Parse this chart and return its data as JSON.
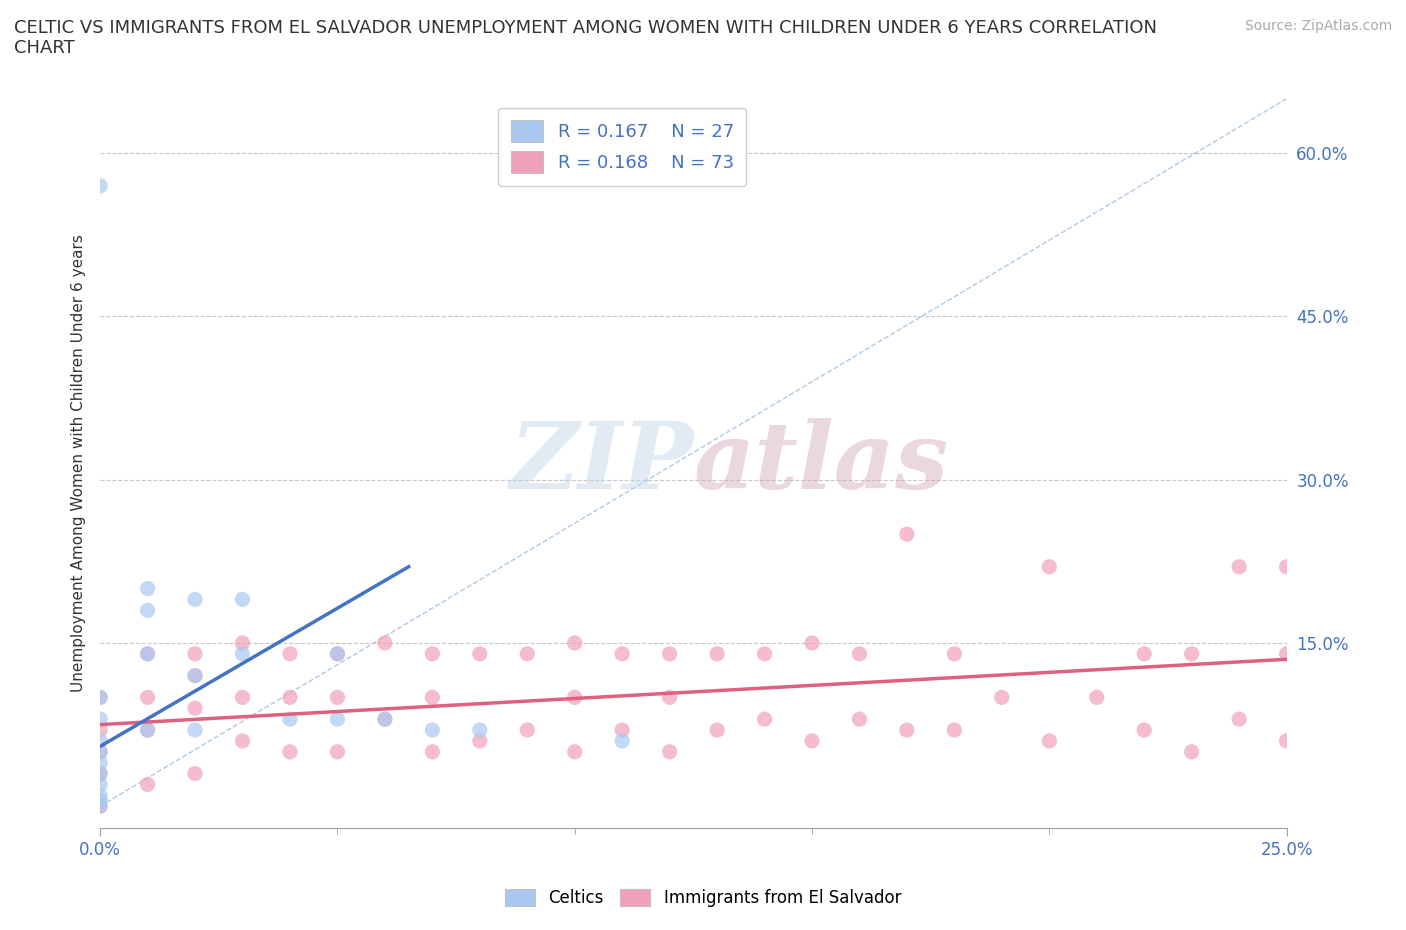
{
  "title": "CELTIC VS IMMIGRANTS FROM EL SALVADOR UNEMPLOYMENT AMONG WOMEN WITH CHILDREN UNDER 6 YEARS CORRELATION\nCHART",
  "source_text": "Source: ZipAtlas.com",
  "ylabel": "Unemployment Among Women with Children Under 6 years",
  "xlim": [
    0.0,
    0.25
  ],
  "ylim": [
    -0.02,
    0.65
  ],
  "ytick_values": [
    0.15,
    0.3,
    0.45,
    0.6
  ],
  "xtick_major": [
    0.0,
    0.25
  ],
  "xtick_minor": [
    0.05,
    0.1,
    0.15,
    0.2
  ],
  "color_celtics": "#a8c8f0",
  "color_salvador": "#f0a0b8",
  "color_celtics_line": "#4472c4",
  "color_salvador_line": "#e06080",
  "color_diagonal": "#b0c8e8",
  "watermark_zip": "ZIP",
  "watermark_atlas": "atlas",
  "background_color": "#ffffff",
  "celtics_x": [
    0.0,
    0.0,
    0.0,
    0.0,
    0.0,
    0.0,
    0.0,
    0.0,
    0.0,
    0.0,
    0.0,
    0.01,
    0.01,
    0.01,
    0.01,
    0.02,
    0.02,
    0.02,
    0.03,
    0.03,
    0.04,
    0.05,
    0.05,
    0.06,
    0.07,
    0.08,
    0.11
  ],
  "celtics_y": [
    0.57,
    0.1,
    0.08,
    0.06,
    0.05,
    0.04,
    0.03,
    0.02,
    0.01,
    0.005,
    0.0,
    0.2,
    0.18,
    0.14,
    0.07,
    0.19,
    0.12,
    0.07,
    0.19,
    0.14,
    0.08,
    0.14,
    0.08,
    0.08,
    0.07,
    0.07,
    0.06
  ],
  "celtics_line_x": [
    0.0,
    0.065
  ],
  "celtics_line_y": [
    0.055,
    0.22
  ],
  "salvador_x": [
    0.0,
    0.0,
    0.0,
    0.0,
    0.0,
    0.01,
    0.01,
    0.01,
    0.01,
    0.02,
    0.02,
    0.02,
    0.02,
    0.03,
    0.03,
    0.03,
    0.04,
    0.04,
    0.04,
    0.05,
    0.05,
    0.05,
    0.06,
    0.06,
    0.07,
    0.07,
    0.07,
    0.08,
    0.08,
    0.09,
    0.09,
    0.1,
    0.1,
    0.1,
    0.11,
    0.11,
    0.12,
    0.12,
    0.12,
    0.13,
    0.13,
    0.14,
    0.14,
    0.15,
    0.15,
    0.16,
    0.16,
    0.17,
    0.17,
    0.18,
    0.18,
    0.19,
    0.2,
    0.2,
    0.21,
    0.22,
    0.22,
    0.23,
    0.23,
    0.24,
    0.24,
    0.25,
    0.25,
    0.25
  ],
  "salvador_y": [
    0.1,
    0.07,
    0.05,
    0.03,
    0.0,
    0.14,
    0.1,
    0.07,
    0.02,
    0.14,
    0.12,
    0.09,
    0.03,
    0.15,
    0.1,
    0.06,
    0.14,
    0.1,
    0.05,
    0.14,
    0.1,
    0.05,
    0.15,
    0.08,
    0.14,
    0.1,
    0.05,
    0.14,
    0.06,
    0.14,
    0.07,
    0.15,
    0.1,
    0.05,
    0.14,
    0.07,
    0.14,
    0.1,
    0.05,
    0.14,
    0.07,
    0.14,
    0.08,
    0.15,
    0.06,
    0.14,
    0.08,
    0.25,
    0.07,
    0.14,
    0.07,
    0.1,
    0.22,
    0.06,
    0.1,
    0.14,
    0.07,
    0.14,
    0.05,
    0.22,
    0.08,
    0.22,
    0.14,
    0.06
  ],
  "salvador_line_x": [
    0.0,
    0.25
  ],
  "salvador_line_y": [
    0.075,
    0.135
  ]
}
